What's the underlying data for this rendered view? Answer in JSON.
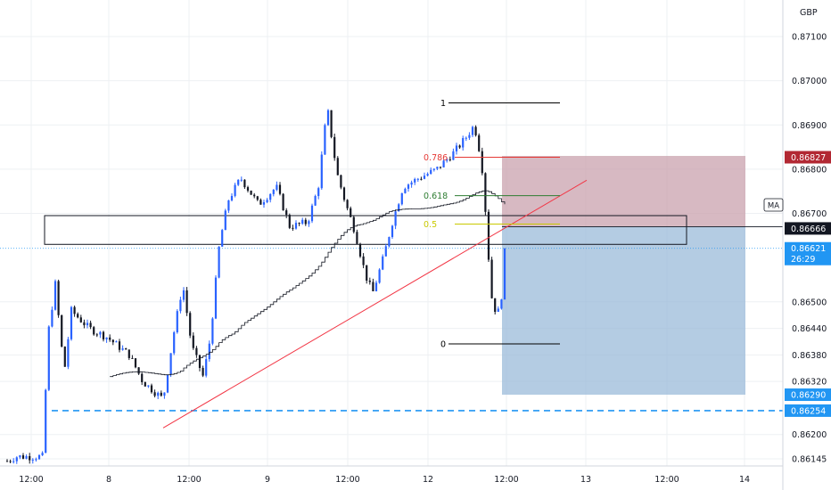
{
  "chart_data": {
    "type": "candlestick",
    "symbol_currency": "GBP",
    "indicator_label": "MA",
    "y_ticks": [
      "0.87100",
      "0.87000",
      "0.86900",
      "0.86800",
      "0.86700",
      "0.86500",
      "0.86440",
      "0.86380",
      "0.86320",
      "0.86200",
      "0.86145"
    ],
    "x_ticks": [
      "12:00",
      "8",
      "12:00",
      "9",
      "12:00",
      "12",
      "12:00",
      "13",
      "12:00",
      "14"
    ],
    "price_tags": {
      "stop": {
        "value": "0.86827",
        "color": "#b22833"
      },
      "entry": {
        "value": "0.86666",
        "color": "#131722"
      },
      "last": {
        "value": "0.86621",
        "countdown": "26:29",
        "color": "#2196f3"
      },
      "target": {
        "value": "0.86290",
        "color": "#2196f3"
      },
      "support": {
        "value": "0.86254",
        "color": "#2196f3"
      }
    },
    "fib_levels": [
      {
        "label": "1",
        "value": 0.8695,
        "color": "#000000"
      },
      {
        "label": "0.786",
        "value": 0.86827,
        "color": "#e53935"
      },
      {
        "label": "0.618",
        "value": 0.8674,
        "color": "#2e7d32"
      },
      {
        "label": "0.5",
        "value": 0.86676,
        "color": "#c9c900"
      },
      {
        "label": "0",
        "value": 0.86405,
        "color": "#000000"
      }
    ],
    "colors": {
      "up": "#2962ff",
      "down": "#131722",
      "trendline": "#f23645",
      "ma": "#131722",
      "risk": "#c9a2ad",
      "reward": "#9bbbd9"
    }
  }
}
